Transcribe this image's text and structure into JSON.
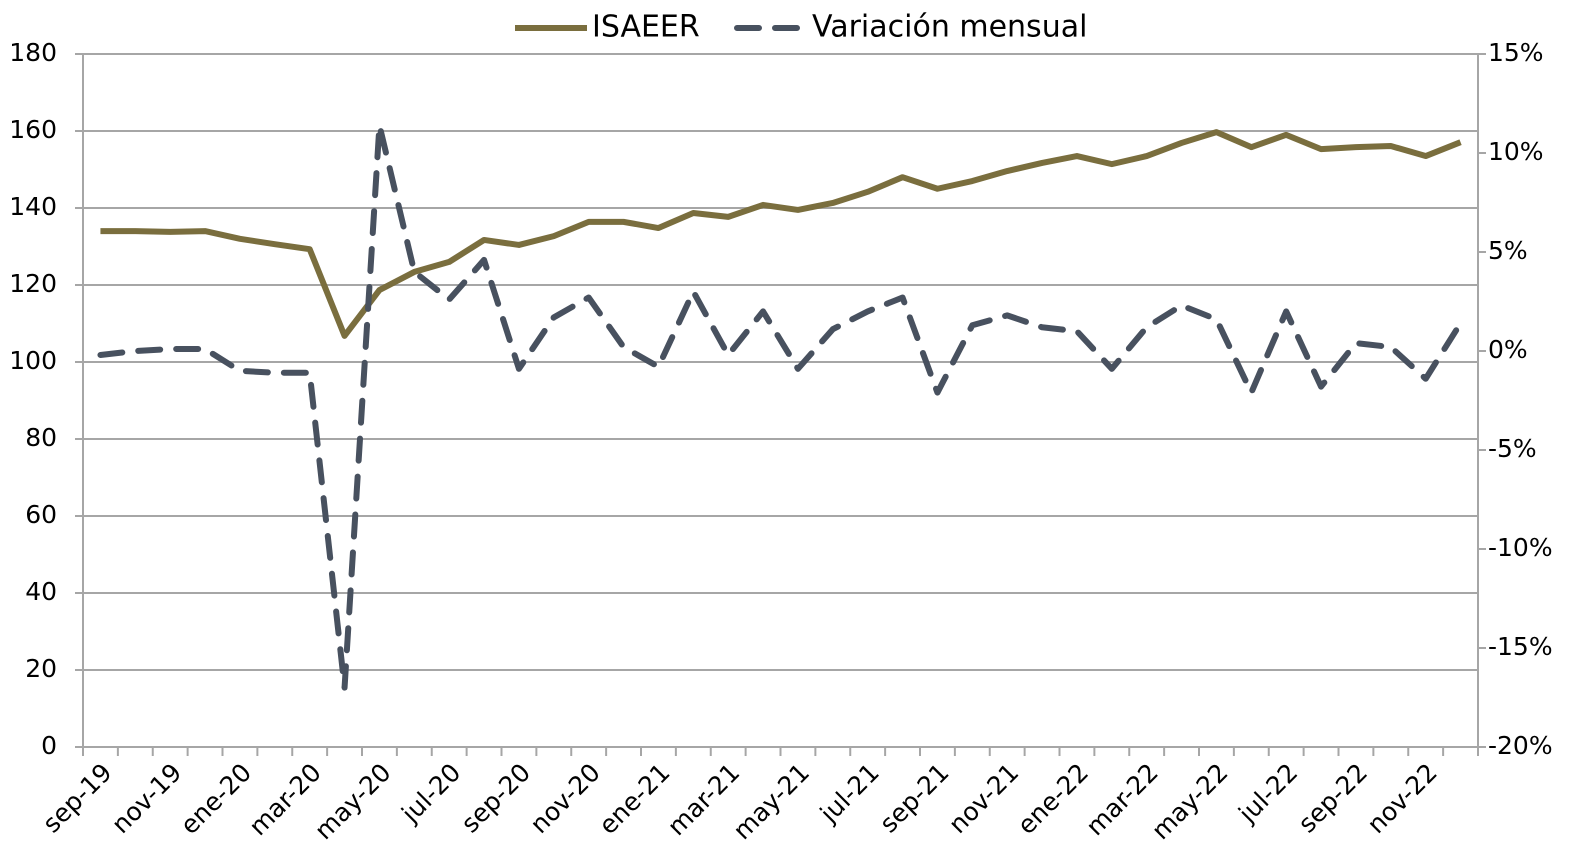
{
  "chart_data": {
    "type": "line",
    "categories": [
      "sep-19",
      null,
      "nov-19",
      null,
      "ene-20",
      null,
      "mar-20",
      null,
      "may-20",
      null,
      "jul-20",
      null,
      "sep-20",
      null,
      "nov-20",
      null,
      "ene-21",
      null,
      "mar-21",
      null,
      "may-21",
      null,
      "jul-21",
      null,
      "sep-21",
      null,
      "nov-21",
      null,
      "ene-22",
      null,
      "mar-22",
      null,
      "may-22",
      null,
      "jul-22",
      null,
      "sep-22",
      null,
      "nov-22",
      null
    ],
    "series": [
      {
        "name": "ISAEER",
        "color": "#7a6e3e",
        "dash": false,
        "values": [
          134,
          134,
          133.8,
          134,
          132,
          130.6,
          129.3,
          106.8,
          118.7,
          123.4,
          126,
          131.7,
          130.4,
          132.7,
          136.4,
          136.4,
          134.8,
          138.7,
          137.7,
          140.8,
          139.5,
          141.3,
          144.2,
          148,
          145,
          147,
          149.6,
          151.7,
          153.5,
          151.4,
          153.5,
          156.9,
          159.7,
          155.8,
          159,
          155.3,
          155.8,
          156.1,
          153.5,
          157.1
        ]
      },
      {
        "name": "Variación mensual",
        "color": "#48515f",
        "dash": true,
        "axis": "y2",
        "values": [
          -0.2,
          0,
          0.1,
          0.1,
          -1,
          -1.1,
          -1.1,
          -17,
          11.4,
          4,
          2.6,
          4.6,
          -0.9,
          1.7,
          2.7,
          0.2,
          -0.8,
          3,
          -0.2,
          2,
          -0.9,
          1.1,
          2,
          2.7,
          -2.1,
          1.3,
          1.8,
          1.2,
          1,
          -0.9,
          1.2,
          2.3,
          1.6,
          -2.1,
          2,
          -1.8,
          0.4,
          0.2,
          -1.4,
          1.4
        ]
      }
    ],
    "ylim": [
      0,
      180
    ],
    "yticks": [
      0,
      20,
      40,
      60,
      80,
      100,
      120,
      140,
      160,
      180
    ],
    "y2lim": [
      -20,
      15
    ],
    "y2ticks": [
      {
        "value": -20,
        "label": "-20%"
      },
      {
        "value": -15,
        "label": "-15%"
      },
      {
        "value": -10,
        "label": "-10%"
      },
      {
        "value": -5,
        "label": "-5%"
      },
      {
        "value": 0,
        "label": "0%"
      },
      {
        "value": 5,
        "label": "5%"
      },
      {
        "value": 10,
        "label": "10%"
      },
      {
        "value": 15,
        "label": "15%"
      }
    ],
    "grid": true,
    "legend": "top"
  }
}
